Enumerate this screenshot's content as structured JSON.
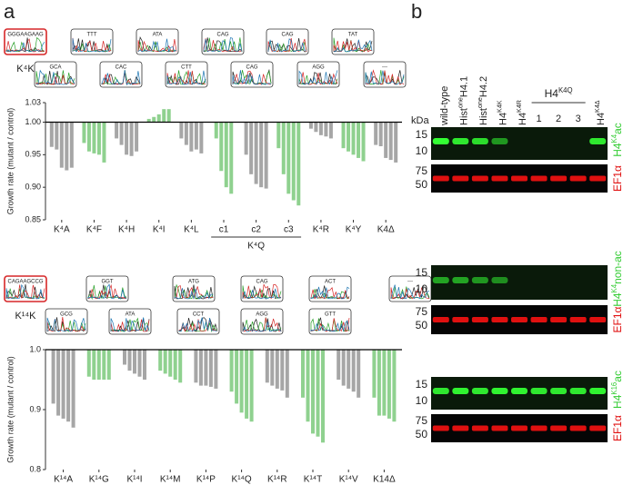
{
  "panel_a_label": "a",
  "chromatograms": [
    {
      "label": "K⁴K",
      "rows": [
        [
          "GGGAAGAAG",
          "TTT",
          "ATA",
          "CAG",
          "CAG",
          "TAT"
        ],
        [
          "GCA",
          "CAC",
          "CTT",
          "CAG",
          "AGG",
          "---"
        ]
      ]
    },
    {
      "label": "K¹⁴K",
      "rows": [
        [
          "CAGAAGCCG",
          "GGT",
          "ATG",
          "CAG",
          "ACT",
          "---"
        ],
        [
          "GCG",
          "ATA",
          "CCT",
          "AGG",
          "GTT"
        ]
      ]
    }
  ],
  "chart_data": [
    {
      "type": "bar",
      "ylabel": "Growth rate (mutant / control)",
      "baseline": 1,
      "ylim": [
        0.85,
        1.03
      ],
      "yticks": [
        0.85,
        {
          "value": 0.9,
          "label": "0.90"
        },
        0.95,
        {
          "value": 1,
          "label": "1.00"
        },
        1.03
      ],
      "categories": [
        "K⁴A",
        "K⁴F",
        "K⁴H",
        "K⁴I",
        "K⁴L",
        "c1",
        "c2",
        "c3",
        "K⁴R",
        "K⁴Y",
        "K4Δ"
      ],
      "colors": [
        "#a6a6a6",
        "#8fd18f",
        "#a6a6a6",
        "#8fd18f",
        "#a6a6a6",
        "#8fd18f",
        "#a6a6a6",
        "#8fd18f",
        "#a6a6a6",
        "#8fd18f",
        "#a6a6a6"
      ],
      "values": [
        [
          0.962,
          0.958,
          0.93,
          0.926,
          0.93
        ],
        [
          0.968,
          0.955,
          0.952,
          0.95,
          0.938
        ],
        [
          0.975,
          0.965,
          0.95,
          0.948,
          0.955
        ],
        [
          1.005,
          1.008,
          1.012,
          1.02,
          1.02
        ],
        [
          0.975,
          0.965,
          0.955,
          0.958,
          0.952
        ],
        [
          0.975,
          0.925,
          0.9,
          0.89
        ],
        [
          0.95,
          0.92,
          0.905,
          0.9,
          0.898
        ],
        [
          0.96,
          0.92,
          0.89,
          0.88,
          0.872
        ],
        [
          0.99,
          0.985,
          0.98,
          0.978,
          0.975
        ],
        [
          0.96,
          0.955,
          0.95,
          0.945,
          0.94
        ],
        [
          0.965,
          0.963,
          0.945,
          0.942,
          0.938
        ]
      ],
      "supergroup": {
        "label": "K⁴Q",
        "span": [
          5,
          7
        ]
      }
    },
    {
      "type": "bar",
      "ylabel": "Growth rate (mutant / control)",
      "baseline": 1,
      "ylim": [
        0.8,
        1.0
      ],
      "yticks": [
        0.8,
        0.9,
        {
          "value": 1,
          "label": "1.0"
        }
      ],
      "categories": [
        "K¹⁴A",
        "K¹⁴G",
        "K¹⁴I",
        "K¹⁴M",
        "K¹⁴P",
        "K¹⁴Q",
        "K¹⁴R",
        "K¹⁴T",
        "K¹⁴V",
        "K14Δ"
      ],
      "colors": [
        "#a6a6a6",
        "#8fd18f",
        "#a6a6a6",
        "#8fd18f",
        "#a6a6a6",
        "#8fd18f",
        "#a6a6a6",
        "#8fd18f",
        "#a6a6a6",
        "#8fd18f"
      ],
      "values": [
        [
          0.91,
          0.89,
          0.885,
          0.88,
          0.87
        ],
        [
          0.955,
          0.95,
          0.95,
          0.95,
          0.95
        ],
        [
          0.975,
          0.965,
          0.96,
          0.955,
          0.95
        ],
        [
          0.965,
          0.96,
          0.955,
          0.95,
          0.945
        ],
        [
          0.945,
          0.94,
          0.94,
          0.938,
          0.935
        ],
        [
          0.93,
          0.91,
          0.895,
          0.885,
          0.88
        ],
        [
          0.945,
          0.94,
          0.935,
          0.932,
          0.92
        ],
        [
          0.92,
          0.88,
          0.86,
          0.855,
          0.845
        ],
        [
          0.95,
          0.94,
          0.935,
          0.93,
          0.92
        ],
        [
          0.92,
          0.89,
          0.89,
          0.885,
          0.88
        ]
      ]
    }
  ],
  "blot": {
    "label": "b",
    "kda": "kDa",
    "lanes": [
      {
        "text": "wild-type"
      },
      {
        "text": "Hist",
        "sup": "one",
        "tail": "H4.1"
      },
      {
        "text": "Hist",
        "sup": "one",
        "tail": "H4.2"
      },
      {
        "text": "H4",
        "sup": "K4K"
      },
      {
        "text": "H4",
        "sup": "K4R"
      }
    ],
    "group_header": {
      "text": "H4",
      "sup": "K4Q"
    },
    "group_lanes": [
      "1",
      "2",
      "3"
    ],
    "last_lane": {
      "text": "H4",
      "sup": "K4Δ"
    },
    "panels": [
      {
        "label": {
          "text": "H4",
          "sup": "K4",
          "tail": "ac"
        },
        "markers": [
          "15",
          "10"
        ],
        "control": "EF1α",
        "control_markers": [
          "75",
          "50"
        ]
      },
      {
        "label": {
          "text": "H4",
          "sup": "K4",
          "tail": "non-ac"
        },
        "markers": [
          "15",
          "10"
        ],
        "control": "EF1α",
        "control_markers": [
          "75",
          "50"
        ]
      },
      {
        "label": {
          "text": "H4",
          "sup": "K16",
          "tail": "ac"
        },
        "markers": [
          "15",
          "10"
        ],
        "control": "EF1α",
        "control_markers": [
          "75",
          "50"
        ]
      }
    ]
  }
}
